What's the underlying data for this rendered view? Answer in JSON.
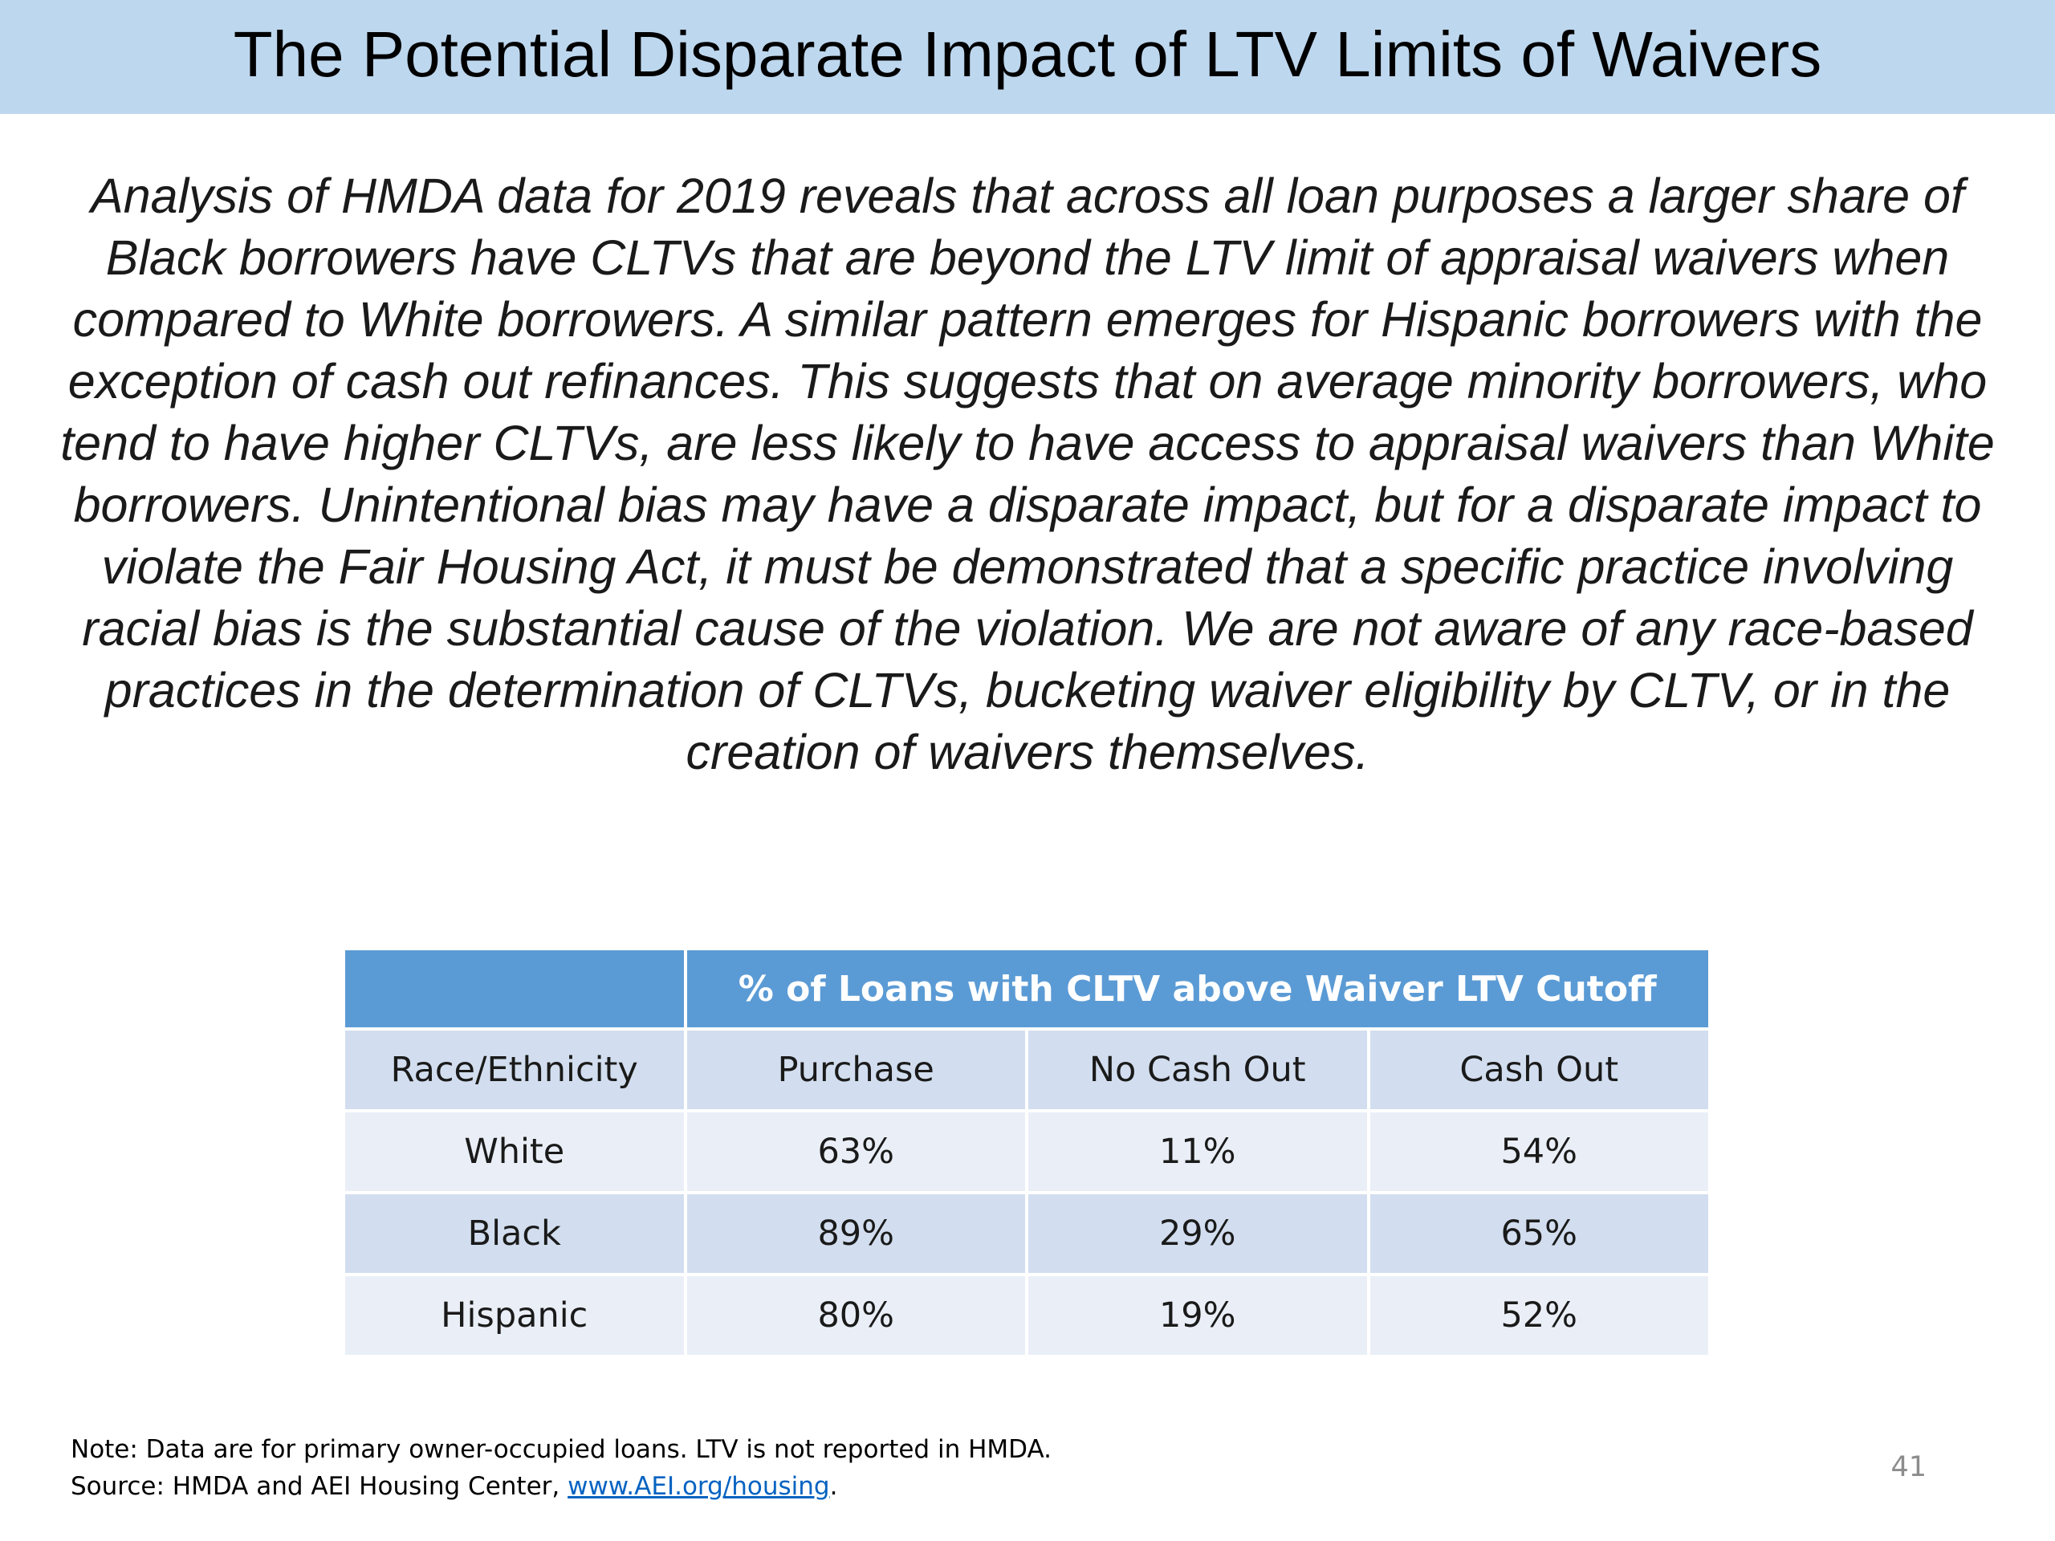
{
  "slide": {
    "title": "The Potential Disparate Impact of LTV Limits of Waivers",
    "summary": "Analysis of HMDA data for 2019 reveals that across all loan purposes a larger share of Black borrowers have CLTVs that are beyond the LTV limit of appraisal waivers when compared to White borrowers. A similar pattern emerges for Hispanic borrowers with the exception of cash out refinances. This suggests that on average minority borrowers, who tend to have higher CLTVs, are less likely to have access to appraisal waivers than White borrowers. Unintentional bias may have a disparate impact, but for a disparate impact to violate the Fair Housing Act, it must be demonstrated that a specific practice involving racial bias is the substantial cause of the violation. We are not aware of any race-based practices in the determination of CLTVs, bucketing waiver eligibility by CLTV, or in the creation of waivers themselves.",
    "page_number": "41"
  },
  "table": {
    "group_header": "% of Loans with CLTV above Waiver LTV Cutoff",
    "columns": [
      "Race/Ethnicity",
      "Purchase",
      "No Cash Out",
      "Cash Out"
    ],
    "rows": [
      [
        "White",
        "63%",
        "11%",
        "54%"
      ],
      [
        "Black",
        "89%",
        "29%",
        "65%"
      ],
      [
        "Hispanic",
        "80%",
        "19%",
        "52%"
      ]
    ]
  },
  "footnote": {
    "note": "Note: Data are for primary owner-occupied loans. LTV is not reported in HMDA.",
    "source_prefix": "Source: HMDA and AEI Housing Center, ",
    "source_link": "www.AEI.org/housing",
    "source_suffix": "."
  },
  "colors": {
    "title_bar": "#bdd7ee",
    "table_header": "#5b9bd5",
    "row_dark": "#d2deef",
    "row_light": "#eaeff7",
    "link": "#0563c1"
  }
}
